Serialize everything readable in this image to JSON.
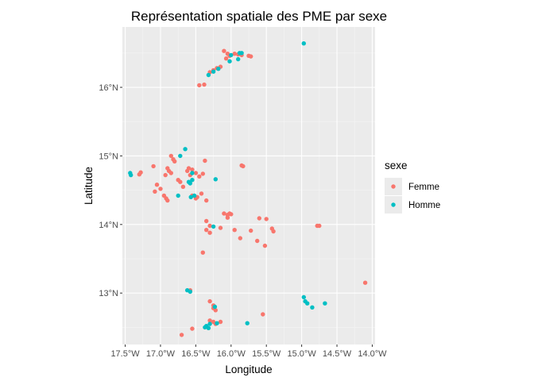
{
  "chart_data": {
    "type": "scatter",
    "title": "Représentation spatiale des PME par sexe",
    "xlabel": "Longitude",
    "ylabel": "Latitude",
    "xlim": [
      -17.54,
      -13.96
    ],
    "ylim": [
      12.25,
      16.88
    ],
    "x_ticks": [
      -17.5,
      -17.0,
      -16.5,
      -16.0,
      -15.5,
      -15.0,
      -14.5,
      -14.0
    ],
    "x_tick_labels": [
      "17.5°W",
      "17.0°W",
      "16.5°W",
      "16.0°W",
      "15.5°W",
      "15.0°W",
      "14.5°W",
      "14.0°W"
    ],
    "y_ticks": [
      13,
      14,
      15,
      16
    ],
    "y_tick_labels": [
      "13°N",
      "14°N",
      "15°N",
      "16°N"
    ],
    "grid": true,
    "legend_title": "sexe",
    "legend_position": "right",
    "series": [
      {
        "name": "Femme",
        "color": "#F8766D",
        "points": [
          [
            -16.1,
            16.53
          ],
          [
            -16.05,
            16.49
          ],
          [
            -16.02,
            16.46
          ],
          [
            -16.07,
            16.42
          ],
          [
            -15.95,
            16.49
          ],
          [
            -15.9,
            16.48
          ],
          [
            -15.85,
            16.47
          ],
          [
            -15.75,
            16.46
          ],
          [
            -15.72,
            16.45
          ],
          [
            -16.15,
            16.3
          ],
          [
            -16.2,
            16.28
          ],
          [
            -16.25,
            16.25
          ],
          [
            -16.3,
            16.22
          ],
          [
            -16.45,
            16.03
          ],
          [
            -16.38,
            16.04
          ],
          [
            -17.3,
            14.73
          ],
          [
            -17.28,
            14.76
          ],
          [
            -17.1,
            14.85
          ],
          [
            -17.05,
            14.58
          ],
          [
            -17.0,
            14.52
          ],
          [
            -17.08,
            14.48
          ],
          [
            -16.95,
            14.42
          ],
          [
            -16.92,
            14.38
          ],
          [
            -16.9,
            14.35
          ],
          [
            -16.9,
            14.82
          ],
          [
            -16.88,
            14.78
          ],
          [
            -16.85,
            14.75
          ],
          [
            -16.93,
            14.72
          ],
          [
            -16.85,
            15.0
          ],
          [
            -16.82,
            14.95
          ],
          [
            -16.8,
            14.92
          ],
          [
            -16.75,
            14.65
          ],
          [
            -16.72,
            14.62
          ],
          [
            -16.68,
            14.55
          ],
          [
            -16.6,
            14.82
          ],
          [
            -16.55,
            14.8
          ],
          [
            -16.62,
            14.78
          ],
          [
            -16.58,
            14.72
          ],
          [
            -16.5,
            14.75
          ],
          [
            -16.45,
            14.7
          ],
          [
            -16.4,
            14.74
          ],
          [
            -16.37,
            14.93
          ],
          [
            -16.55,
            14.42
          ],
          [
            -16.5,
            14.38
          ],
          [
            -16.48,
            14.4
          ],
          [
            -16.42,
            14.45
          ],
          [
            -16.35,
            14.35
          ],
          [
            -15.85,
            14.86
          ],
          [
            -15.83,
            14.85
          ],
          [
            -16.1,
            14.16
          ],
          [
            -16.05,
            14.14
          ],
          [
            -16.02,
            14.16
          ],
          [
            -16.0,
            14.15
          ],
          [
            -16.05,
            14.1
          ],
          [
            -16.35,
            14.05
          ],
          [
            -16.3,
            13.98
          ],
          [
            -16.35,
            13.92
          ],
          [
            -16.3,
            13.88
          ],
          [
            -16.15,
            13.95
          ],
          [
            -15.95,
            13.92
          ],
          [
            -15.87,
            13.8
          ],
          [
            -15.72,
            13.91
          ],
          [
            -15.6,
            14.09
          ],
          [
            -15.5,
            14.08
          ],
          [
            -15.42,
            13.94
          ],
          [
            -15.4,
            13.9
          ],
          [
            -15.52,
            13.69
          ],
          [
            -15.63,
            13.76
          ],
          [
            -14.78,
            13.98
          ],
          [
            -14.75,
            13.98
          ],
          [
            -16.4,
            13.59
          ],
          [
            -16.58,
            13.04
          ],
          [
            -16.3,
            12.88
          ],
          [
            -16.25,
            12.82
          ],
          [
            -16.25,
            12.78
          ],
          [
            -16.22,
            12.75
          ],
          [
            -16.3,
            12.6
          ],
          [
            -16.25,
            12.58
          ],
          [
            -16.22,
            12.55
          ],
          [
            -16.15,
            12.58
          ],
          [
            -16.55,
            12.48
          ],
          [
            -16.7,
            12.39
          ],
          [
            -15.55,
            12.69
          ],
          [
            -14.1,
            13.15
          ]
        ]
      },
      {
        "name": "Homme",
        "color": "#00BFC4",
        "points": [
          [
            -14.97,
            16.64
          ],
          [
            -15.88,
            16.5
          ],
          [
            -15.85,
            16.5
          ],
          [
            -16.0,
            16.47
          ],
          [
            -16.02,
            16.38
          ],
          [
            -15.9,
            16.41
          ],
          [
            -16.18,
            16.27
          ],
          [
            -16.25,
            16.23
          ],
          [
            -16.32,
            16.18
          ],
          [
            -17.43,
            14.75
          ],
          [
            -17.42,
            14.72
          ],
          [
            -16.65,
            15.1
          ],
          [
            -16.72,
            15.0
          ],
          [
            -16.55,
            14.75
          ],
          [
            -16.6,
            14.62
          ],
          [
            -16.55,
            14.65
          ],
          [
            -16.58,
            14.6
          ],
          [
            -16.22,
            14.66
          ],
          [
            -16.75,
            14.42
          ],
          [
            -16.52,
            14.42
          ],
          [
            -16.57,
            14.4
          ],
          [
            -16.25,
            13.97
          ],
          [
            -16.62,
            13.04
          ],
          [
            -16.58,
            13.02
          ],
          [
            -16.23,
            12.8
          ],
          [
            -16.3,
            12.55
          ],
          [
            -16.35,
            12.52
          ],
          [
            -16.32,
            12.49
          ],
          [
            -16.37,
            12.5
          ],
          [
            -16.2,
            12.56
          ],
          [
            -15.77,
            12.56
          ],
          [
            -14.97,
            12.94
          ],
          [
            -14.95,
            12.88
          ],
          [
            -14.92,
            12.85
          ],
          [
            -14.85,
            12.79
          ],
          [
            -14.67,
            12.85
          ]
        ]
      }
    ]
  }
}
